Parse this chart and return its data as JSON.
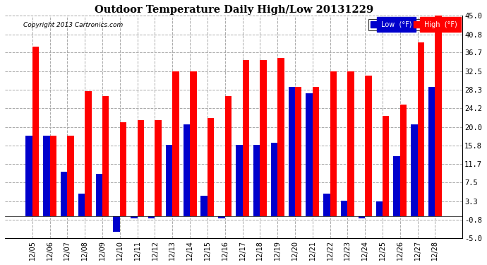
{
  "title": "Outdoor Temperature Daily High/Low 20131229",
  "copyright_text": "Copyright 2013 Cartronics.com",
  "dates": [
    "12/05",
    "12/06",
    "12/07",
    "12/08",
    "12/09",
    "12/10",
    "12/11",
    "12/12",
    "12/13",
    "12/14",
    "12/15",
    "12/16",
    "12/17",
    "12/18",
    "12/19",
    "12/20",
    "12/21",
    "12/22",
    "12/23",
    "12/24",
    "12/25",
    "12/26",
    "12/27",
    "12/28"
  ],
  "high": [
    38.0,
    18.0,
    18.0,
    28.0,
    27.0,
    21.0,
    21.5,
    21.5,
    32.5,
    32.5,
    22.0,
    27.0,
    35.0,
    35.0,
    35.5,
    29.0,
    29.0,
    32.5,
    32.5,
    31.5,
    22.5,
    25.0,
    39.0,
    45.0
  ],
  "low": [
    18.0,
    18.0,
    10.0,
    5.0,
    9.5,
    -3.5,
    -0.5,
    -0.5,
    16.0,
    20.5,
    4.5,
    -0.5,
    16.0,
    16.0,
    16.5,
    29.0,
    27.5,
    5.0,
    3.5,
    -0.5,
    3.3,
    13.5,
    20.5,
    29.0
  ],
  "high_color": "#ff0000",
  "low_color": "#0000cc",
  "bg_color": "#ffffff",
  "plot_bg_color": "#ffffff",
  "grid_color": "#aaaaaa",
  "ylim": [
    -5.0,
    45.0
  ],
  "yticks": [
    -5.0,
    -0.8,
    3.3,
    7.5,
    11.7,
    15.8,
    20.0,
    24.2,
    28.3,
    32.5,
    36.7,
    40.8,
    45.0
  ],
  "bar_width": 0.38,
  "figwidth": 6.9,
  "figheight": 3.75,
  "dpi": 100
}
